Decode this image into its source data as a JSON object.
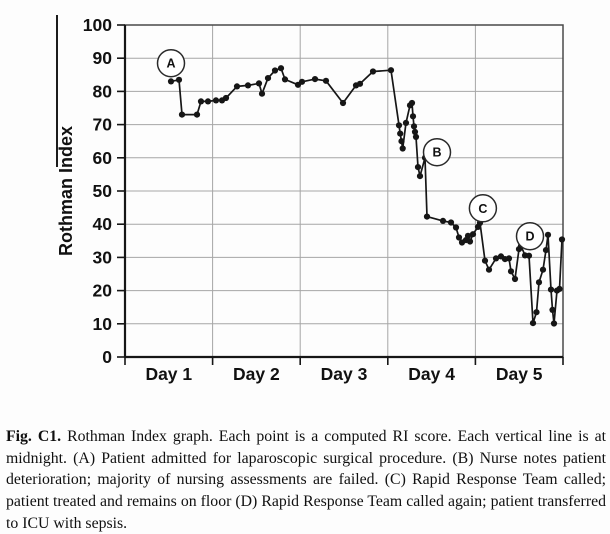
{
  "figure": {
    "caption": {
      "label": "Fig. C1.",
      "text": " Rothman Index graph. Each point is a computed RI score. Each vertical line is at midnight. (A) Patient admitted for laparoscopic surgical procedure. (B) Nurse notes patient deterioration; majority of nursing assessments are failed. (C) Rapid Response Team called; patient treated and remains on floor (D) Rapid Response Team called again; patient transferred to ICU with sepsis."
    }
  },
  "chart_data": {
    "type": "line",
    "title": "",
    "xlabel": "",
    "ylabel": "Rothman Index",
    "ylim": [
      0,
      100
    ],
    "y_ticks": [
      0,
      10,
      20,
      30,
      40,
      50,
      60,
      70,
      80,
      90,
      100
    ],
    "x_tick_labels": [
      "Day 1",
      "Day 2",
      "Day 3",
      "Day 4",
      "Day 5"
    ],
    "x_range_days": [
      0,
      5
    ],
    "grid": true,
    "legend": "none",
    "line_color": "#161616",
    "grid_color": "#a6a6a6",
    "series": [
      {
        "name": "Computed RI score",
        "points": [
          [
            0.525,
            83
          ],
          [
            0.616,
            83.5
          ],
          [
            0.651,
            73
          ],
          [
            0.822,
            73
          ],
          [
            0.868,
            77
          ],
          [
            0.947,
            77
          ],
          [
            1.039,
            77.3
          ],
          [
            1.107,
            77.3
          ],
          [
            1.153,
            78
          ],
          [
            1.279,
            81.5
          ],
          [
            1.404,
            81.8
          ],
          [
            1.53,
            82.4
          ],
          [
            1.564,
            79.3
          ],
          [
            1.632,
            84
          ],
          [
            1.712,
            86.3
          ],
          [
            1.781,
            87
          ],
          [
            1.826,
            83.6
          ],
          [
            1.975,
            82
          ],
          [
            2.02,
            82.9
          ],
          [
            2.169,
            83.7
          ],
          [
            2.294,
            83.2
          ],
          [
            2.489,
            76.5
          ],
          [
            2.637,
            81.8
          ],
          [
            2.683,
            82.3
          ],
          [
            2.831,
            86
          ],
          [
            3.036,
            86.4
          ],
          [
            3.128,
            69.8
          ],
          [
            3.142,
            67.3
          ],
          [
            3.156,
            65
          ],
          [
            3.17,
            62.8
          ],
          [
            3.208,
            70.5
          ],
          [
            3.253,
            75.8
          ],
          [
            3.276,
            76.5
          ],
          [
            3.288,
            72.5
          ],
          [
            3.299,
            69.5
          ],
          [
            3.311,
            67.8
          ],
          [
            3.322,
            66.3
          ],
          [
            3.345,
            57.2
          ],
          [
            3.368,
            54.5
          ],
          [
            3.425,
            60
          ],
          [
            3.447,
            42.3
          ],
          [
            3.63,
            41
          ],
          [
            3.721,
            40.5
          ],
          [
            3.778,
            39
          ],
          [
            3.813,
            36
          ],
          [
            3.847,
            34.5
          ],
          [
            3.893,
            35.2
          ],
          [
            3.915,
            36.5
          ],
          [
            3.938,
            34.8
          ],
          [
            3.973,
            37
          ],
          [
            4.03,
            39.2
          ],
          [
            4.053,
            40.4
          ],
          [
            4.11,
            29
          ],
          [
            4.155,
            26.3
          ],
          [
            4.235,
            29.7
          ],
          [
            4.292,
            30.3
          ],
          [
            4.338,
            29.5
          ],
          [
            4.384,
            29.7
          ],
          [
            4.406,
            25.8
          ],
          [
            4.452,
            23.5
          ],
          [
            4.498,
            32.5
          ],
          [
            4.521,
            33.5
          ],
          [
            4.566,
            30.6
          ],
          [
            4.612,
            30.5
          ],
          [
            4.658,
            10.2
          ],
          [
            4.698,
            13.5
          ],
          [
            4.726,
            22.5
          ],
          [
            4.772,
            26.3
          ],
          [
            4.806,
            32.2
          ],
          [
            4.829,
            36.8
          ],
          [
            4.863,
            20.3
          ],
          [
            4.88,
            14.2
          ],
          [
            4.897,
            10.1
          ],
          [
            4.932,
            20
          ],
          [
            4.96,
            20.5
          ],
          [
            4.989,
            35.4
          ]
        ]
      }
    ],
    "annotations": [
      {
        "label": "A",
        "day": 0.525,
        "value": 88.5
      },
      {
        "label": "B",
        "day": 3.562,
        "value": 61.7
      },
      {
        "label": "C",
        "day": 4.086,
        "value": 44.8
      },
      {
        "label": "D",
        "day": 4.623,
        "value": 36.4
      }
    ]
  }
}
